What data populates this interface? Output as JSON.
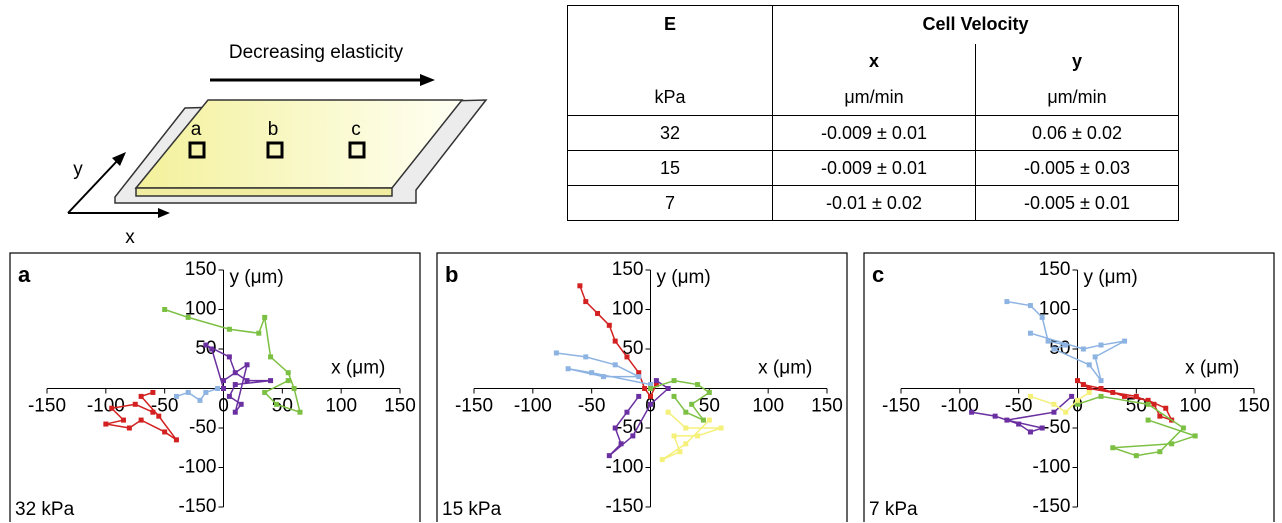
{
  "diagram": {
    "title": "Decreasing elasticity",
    "axis_x": "x",
    "axis_y": "y",
    "spots": [
      "a",
      "b",
      "c"
    ]
  },
  "table": {
    "header": {
      "e": "E",
      "velocity": "Cell Velocity",
      "x": "x",
      "y": "y",
      "unit_e": "kPa",
      "unit_x": "μm/min",
      "unit_y": "μm/min"
    },
    "rows": [
      [
        "32",
        "-0.009 ± 0.01",
        "0.06 ± 0.02"
      ],
      [
        "15",
        "-0.009 ± 0.01",
        "-0.005 ± 0.03"
      ],
      [
        "7",
        "-0.01 ± 0.02",
        "-0.005 ± 0.01"
      ]
    ]
  },
  "chart_data": [
    {
      "type": "line",
      "panel": "a",
      "note": "32 kPa",
      "xlabel": "x (μm)",
      "ylabel": "y (μm)",
      "xlim": [
        -150,
        150
      ],
      "ylim": [
        -150,
        150
      ],
      "xticks": [
        -150,
        -100,
        -50,
        0,
        50,
        100,
        150
      ],
      "yticks": [
        -150,
        -100,
        -50,
        50,
        100,
        150
      ],
      "series": [
        {
          "color": "#d32020",
          "x": [
            -60,
            -75,
            -95,
            -85,
            -100,
            -80,
            -70,
            -50,
            -40,
            -55,
            -70,
            -60
          ],
          "values": [
            -30,
            -20,
            -25,
            -40,
            -45,
            -50,
            -40,
            -55,
            -65,
            -35,
            -10,
            -5
          ]
        },
        {
          "color": "#8db3e2",
          "x": [
            -40,
            -30,
            -20,
            -15,
            -5
          ],
          "values": [
            -10,
            -5,
            -15,
            -5,
            0
          ]
        },
        {
          "color": "#6a2fa0",
          "x": [
            0,
            -10,
            -15,
            5,
            10,
            20,
            40,
            10,
            5,
            15,
            10,
            20,
            0
          ],
          "values": [
            0,
            50,
            55,
            40,
            20,
            10,
            10,
            5,
            -10,
            -20,
            -30,
            30,
            10
          ]
        },
        {
          "color": "#7cc043",
          "x": [
            -50,
            -30,
            5,
            30,
            35,
            40,
            55,
            60,
            65,
            45,
            35,
            55
          ],
          "values": [
            100,
            90,
            75,
            70,
            90,
            40,
            20,
            0,
            -30,
            -20,
            -5,
            10
          ]
        }
      ]
    },
    {
      "type": "line",
      "panel": "b",
      "note": "15 kPa",
      "xlabel": "x (μm)",
      "ylabel": "y (μm)",
      "xlim": [
        -150,
        150
      ],
      "ylim": [
        -150,
        150
      ],
      "xticks": [
        -150,
        -100,
        -50,
        0,
        50,
        100,
        150
      ],
      "yticks": [
        -150,
        -100,
        -50,
        50,
        100,
        150
      ],
      "series": [
        {
          "color": "#d32020",
          "x": [
            -60,
            -55,
            -45,
            -35,
            -30,
            -20,
            -10,
            -5,
            0,
            5
          ],
          "values": [
            130,
            110,
            95,
            80,
            60,
            40,
            20,
            0,
            -10,
            5
          ]
        },
        {
          "color": "#8db3e2",
          "x": [
            -80,
            -55,
            -30,
            -10,
            -40,
            -70,
            -50,
            0
          ],
          "values": [
            45,
            40,
            30,
            15,
            15,
            25,
            20,
            5
          ]
        },
        {
          "color": "#6a2fa0",
          "x": [
            -10,
            -20,
            -30,
            -25,
            -35,
            -15,
            0,
            15,
            5
          ],
          "values": [
            -10,
            -30,
            -50,
            -70,
            -85,
            -60,
            -20,
            0,
            10
          ]
        },
        {
          "color": "#7cc043",
          "x": [
            0,
            20,
            40,
            50,
            35,
            45,
            30,
            20
          ],
          "values": [
            0,
            10,
            5,
            -5,
            -20,
            -40,
            -30,
            -10
          ]
        },
        {
          "color": "#f5f07a",
          "x": [
            15,
            30,
            60,
            40,
            20,
            25,
            10,
            30,
            50
          ],
          "values": [
            -30,
            -50,
            -50,
            -60,
            -60,
            -80,
            -90,
            -70,
            -40
          ]
        }
      ]
    },
    {
      "type": "line",
      "panel": "c",
      "note": "7 kPa",
      "xlabel": "x (μm)",
      "ylabel": "y (μm)",
      "xlim": [
        -150,
        150
      ],
      "ylim": [
        -150,
        150
      ],
      "xticks": [
        -150,
        -100,
        -50,
        0,
        50,
        100,
        150
      ],
      "yticks": [
        -150,
        -100,
        -50,
        50,
        100,
        150
      ],
      "series": [
        {
          "color": "#8db3e2",
          "x": [
            -60,
            -40,
            -30,
            -25,
            -10,
            -20,
            10,
            20,
            15,
            40,
            20,
            5,
            -40
          ],
          "values": [
            110,
            105,
            90,
            60,
            55,
            50,
            30,
            10,
            40,
            60,
            55,
            50,
            70
          ]
        },
        {
          "color": "#d32020",
          "x": [
            0,
            10,
            30,
            50,
            65,
            70,
            80,
            75,
            60,
            40,
            20,
            5
          ],
          "values": [
            10,
            0,
            -5,
            -10,
            -20,
            -35,
            -40,
            -25,
            -15,
            -10,
            0,
            5
          ]
        },
        {
          "color": "#6a2fa0",
          "x": [
            -90,
            -70,
            -50,
            -40,
            -30,
            -60,
            -20,
            -5
          ],
          "values": [
            -30,
            -35,
            -45,
            -55,
            -50,
            -40,
            -30,
            -10
          ]
        },
        {
          "color": "#7cc043",
          "x": [
            0,
            20,
            60,
            90,
            70,
            50,
            30,
            80,
            100,
            60
          ],
          "values": [
            -20,
            -10,
            -20,
            -50,
            -80,
            -85,
            -75,
            -70,
            -60,
            -40
          ]
        },
        {
          "color": "#f5f07a",
          "x": [
            -40,
            -20,
            -10,
            0,
            10
          ],
          "values": [
            -10,
            -20,
            -30,
            -15,
            -5
          ]
        }
      ]
    }
  ]
}
